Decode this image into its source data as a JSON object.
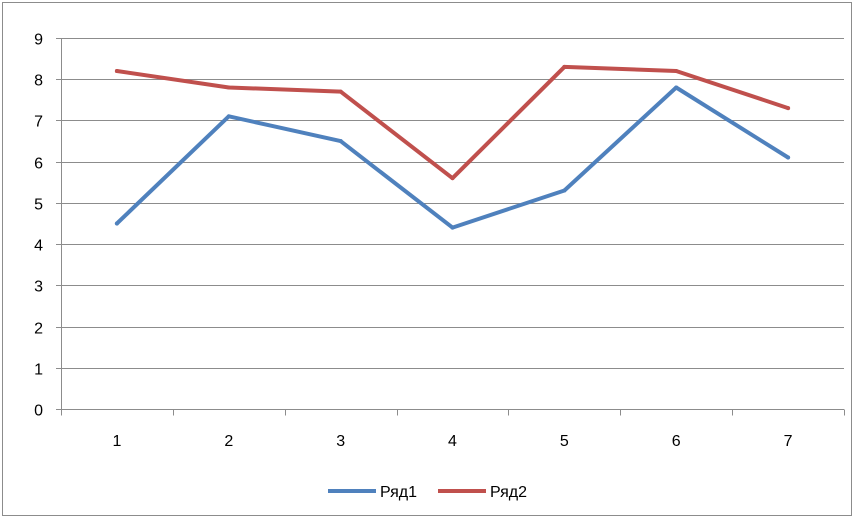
{
  "chart_data": {
    "type": "line",
    "title": "",
    "xlabel": "",
    "ylabel": "",
    "x": [
      1,
      2,
      3,
      4,
      5,
      6,
      7
    ],
    "categories": [
      "1",
      "2",
      "3",
      "4",
      "5",
      "6",
      "7"
    ],
    "ylim": [
      0,
      9
    ],
    "yticks": [
      "0",
      "1",
      "2",
      "3",
      "4",
      "5",
      "6",
      "7",
      "8",
      "9"
    ],
    "grid": true,
    "legend_position": "bottom",
    "series": [
      {
        "name": "Ряд1",
        "color": "#4f81bd",
        "values": [
          4.5,
          7.1,
          6.5,
          4.4,
          5.3,
          7.8,
          6.1
        ]
      },
      {
        "name": "Ряд2",
        "color": "#c0504d",
        "values": [
          8.2,
          7.8,
          7.7,
          5.6,
          8.3,
          8.2,
          7.3
        ]
      }
    ]
  }
}
